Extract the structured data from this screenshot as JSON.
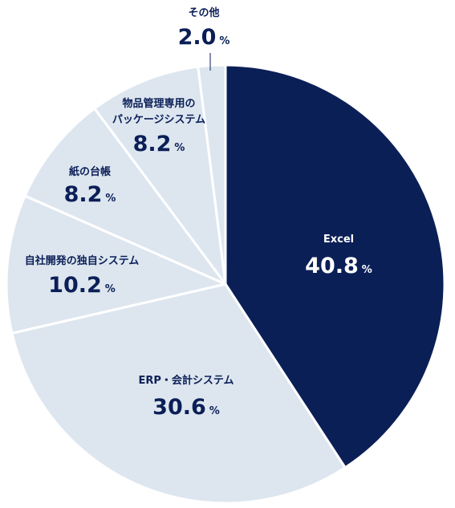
{
  "chart_data": {
    "type": "pie",
    "title": "",
    "percent_sign": "%",
    "slices": [
      {
        "name": "Excel",
        "value": 40.8,
        "value_label": "40.8",
        "color": "#0b1f57",
        "text_color": "#ffffff"
      },
      {
        "name": "ERP・会計システム",
        "value": 30.6,
        "value_label": "30.6",
        "color": "#dde6ef",
        "text_color": "#0b1f57"
      },
      {
        "name": "自社開発の独自システム",
        "value": 10.2,
        "value_label": "10.2",
        "color": "#dde6ef",
        "text_color": "#0b1f57"
      },
      {
        "name": "紙の台帳",
        "value": 8.2,
        "value_label": "8.2",
        "color": "#dde6ef",
        "text_color": "#0b1f57"
      },
      {
        "name": "物品管理専用の\nパッケージシステム",
        "value": 8.2,
        "value_label": "8.2",
        "color": "#dde6ef",
        "text_color": "#0b1f57"
      },
      {
        "name": "その他",
        "value": 2.0,
        "value_label": "2.0",
        "color": "#dde6ef",
        "text_color": "#0b1f57"
      }
    ],
    "start_angle_deg": 0,
    "direction": "clockwise",
    "legend": "none"
  }
}
